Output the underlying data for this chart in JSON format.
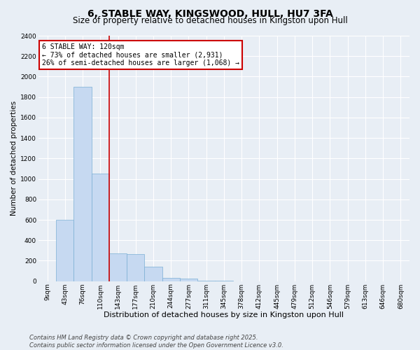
{
  "title": "6, STABLE WAY, KINGSWOOD, HULL, HU7 3FA",
  "subtitle": "Size of property relative to detached houses in Kingston upon Hull",
  "xlabel": "Distribution of detached houses by size in Kingston upon Hull",
  "ylabel": "Number of detached properties",
  "categories": [
    "9sqm",
    "43sqm",
    "76sqm",
    "110sqm",
    "143sqm",
    "177sqm",
    "210sqm",
    "244sqm",
    "277sqm",
    "311sqm",
    "345sqm",
    "378sqm",
    "412sqm",
    "445sqm",
    "479sqm",
    "512sqm",
    "546sqm",
    "579sqm",
    "613sqm",
    "646sqm",
    "680sqm"
  ],
  "values": [
    0,
    600,
    1900,
    1050,
    270,
    265,
    140,
    30,
    28,
    5,
    2,
    0,
    0,
    0,
    0,
    0,
    0,
    0,
    0,
    0,
    0
  ],
  "bar_color": "#c6d9f1",
  "bar_edge_color": "#7bafd4",
  "background_color": "#e8eef5",
  "grid_color": "#ffffff",
  "vline_x": 3.5,
  "vline_color": "#cc0000",
  "annotation_text": "6 STABLE WAY: 120sqm\n← 73% of detached houses are smaller (2,931)\n26% of semi-detached houses are larger (1,068) →",
  "annotation_box_color": "#ffffff",
  "annotation_box_edge": "#cc0000",
  "ylim": [
    0,
    2400
  ],
  "yticks": [
    0,
    200,
    400,
    600,
    800,
    1000,
    1200,
    1400,
    1600,
    1800,
    2000,
    2200,
    2400
  ],
  "footer": "Contains HM Land Registry data © Crown copyright and database right 2025.\nContains public sector information licensed under the Open Government Licence v3.0.",
  "title_fontsize": 10,
  "subtitle_fontsize": 8.5,
  "xlabel_fontsize": 8,
  "ylabel_fontsize": 7.5,
  "tick_fontsize": 6.5,
  "annotation_fontsize": 7,
  "footer_fontsize": 6
}
